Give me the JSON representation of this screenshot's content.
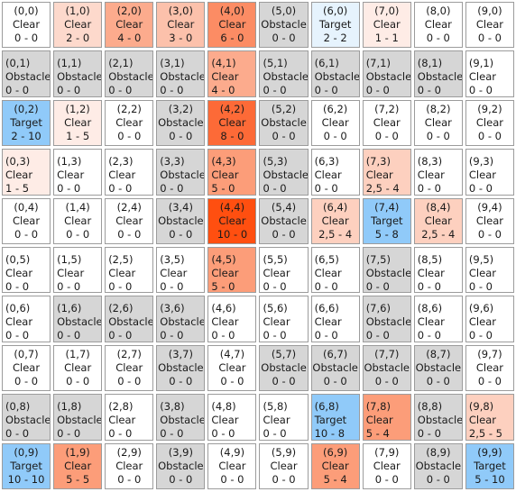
{
  "grid": {
    "columns": 10,
    "rows": 10,
    "cells": [
      [
        {
          "coord": "(0,0)",
          "type": "Clear",
          "value": "0 - 0",
          "color": "#ffffff",
          "align": "center"
        },
        {
          "coord": "(1,0)",
          "type": "Clear",
          "value": "2 - 0",
          "color": "#fdd9cc",
          "align": "center"
        },
        {
          "coord": "(2,0)",
          "type": "Clear",
          "value": "4 - 0",
          "color": "#fcab8d",
          "align": "center"
        },
        {
          "coord": "(3,0)",
          "type": "Clear",
          "value": "3 - 0",
          "color": "#fcc1ab",
          "align": "center"
        },
        {
          "coord": "(4,0)",
          "type": "Clear",
          "value": "6 - 0",
          "color": "#fc8c64",
          "align": "center"
        },
        {
          "coord": "(5,0)",
          "type": "Obstacle",
          "value": "0 - 0",
          "color": "#d6d6d6",
          "align": "center"
        },
        {
          "coord": "(6,0)",
          "type": "Target",
          "value": "2 - 2",
          "color": "#e6f3fd",
          "align": "center"
        },
        {
          "coord": "(7,0)",
          "type": "Clear",
          "value": "1 - 1",
          "color": "#feece6",
          "align": "center"
        },
        {
          "coord": "(8,0)",
          "type": "Clear",
          "value": "0 - 0",
          "color": "#ffffff",
          "align": "center"
        },
        {
          "coord": "(9,0)",
          "type": "Clear",
          "value": "0 - 0",
          "color": "#ffffff",
          "align": "center"
        }
      ],
      [
        {
          "coord": "(0,1)",
          "type": "Obstacle",
          "value": "0 - 0",
          "color": "#d6d6d6",
          "align": "left"
        },
        {
          "coord": "(1,1)",
          "type": "Obstacle",
          "value": "0 - 0",
          "color": "#d6d6d6",
          "align": "left"
        },
        {
          "coord": "(2,1)",
          "type": "Obstacle",
          "value": "0 - 0",
          "color": "#d6d6d6",
          "align": "left"
        },
        {
          "coord": "(3,1)",
          "type": "Obstacle",
          "value": "0 - 0",
          "color": "#d6d6d6",
          "align": "left"
        },
        {
          "coord": "(4,1)",
          "type": "Clear",
          "value": "4 - 0",
          "color": "#fcab8d",
          "align": "left"
        },
        {
          "coord": "(5,1)",
          "type": "Obstacle",
          "value": "0 - 0",
          "color": "#d6d6d6",
          "align": "left"
        },
        {
          "coord": "(6,1)",
          "type": "Obstacle",
          "value": "0 - 0",
          "color": "#d6d6d6",
          "align": "left"
        },
        {
          "coord": "(7,1)",
          "type": "Obstacle",
          "value": "0 - 0",
          "color": "#d6d6d6",
          "align": "left"
        },
        {
          "coord": "(8,1)",
          "type": "Obstacle",
          "value": "0 - 0",
          "color": "#d6d6d6",
          "align": "left"
        },
        {
          "coord": "(9,1)",
          "type": "Clear",
          "value": "0 - 0",
          "color": "#ffffff",
          "align": "left"
        }
      ],
      [
        {
          "coord": "(0,2)",
          "type": "Target",
          "value": "2 - 10",
          "color": "#90caf9",
          "align": "center"
        },
        {
          "coord": "(1,2)",
          "type": "Clear",
          "value": "1 - 5",
          "color": "#feece6",
          "align": "center"
        },
        {
          "coord": "(2,2)",
          "type": "Clear",
          "value": "0 - 0",
          "color": "#ffffff",
          "align": "center"
        },
        {
          "coord": "(3,2)",
          "type": "Obstacle",
          "value": "0 - 0",
          "color": "#d6d6d6",
          "align": "center"
        },
        {
          "coord": "(4,2)",
          "type": "Clear",
          "value": "8 - 0",
          "color": "#fd6a37",
          "align": "center"
        },
        {
          "coord": "(5,2)",
          "type": "Obstacle",
          "value": "0 - 0",
          "color": "#d6d6d6",
          "align": "center"
        },
        {
          "coord": "(6,2)",
          "type": "Clear",
          "value": "0 - 0",
          "color": "#ffffff",
          "align": "center"
        },
        {
          "coord": "(7,2)",
          "type": "Clear",
          "value": "0 - 0",
          "color": "#ffffff",
          "align": "center"
        },
        {
          "coord": "(8,2)",
          "type": "Clear",
          "value": "0 - 0",
          "color": "#ffffff",
          "align": "center"
        },
        {
          "coord": "(9,2)",
          "type": "Clear",
          "value": "0 - 0",
          "color": "#ffffff",
          "align": "center"
        }
      ],
      [
        {
          "coord": "(0,3)",
          "type": "Clear",
          "value": "1 - 5",
          "color": "#feece6",
          "align": "left"
        },
        {
          "coord": "(1,3)",
          "type": "Clear",
          "value": "0 - 0",
          "color": "#ffffff",
          "align": "left"
        },
        {
          "coord": "(2,3)",
          "type": "Clear",
          "value": "0 - 0",
          "color": "#ffffff",
          "align": "left"
        },
        {
          "coord": "(3,3)",
          "type": "Obstacle",
          "value": "0 - 0",
          "color": "#d6d6d6",
          "align": "left"
        },
        {
          "coord": "(4,3)",
          "type": "Clear",
          "value": "5 - 0",
          "color": "#fc9d79",
          "align": "left"
        },
        {
          "coord": "(5,3)",
          "type": "Obstacle",
          "value": "0 - 0",
          "color": "#d6d6d6",
          "align": "left"
        },
        {
          "coord": "(6,3)",
          "type": "Clear",
          "value": "0 - 0",
          "color": "#ffffff",
          "align": "left"
        },
        {
          "coord": "(7,3)",
          "type": "Clear",
          "value": "2,5 - 4",
          "color": "#fdd0bf",
          "align": "left"
        },
        {
          "coord": "(8,3)",
          "type": "Clear",
          "value": "0 - 0",
          "color": "#ffffff",
          "align": "left"
        },
        {
          "coord": "(9,3)",
          "type": "Clear",
          "value": "0 - 0",
          "color": "#ffffff",
          "align": "left"
        }
      ],
      [
        {
          "coord": "(0,4)",
          "type": "Clear",
          "value": "0 - 0",
          "color": "#ffffff",
          "align": "center"
        },
        {
          "coord": "(1,4)",
          "type": "Clear",
          "value": "0 - 0",
          "color": "#ffffff",
          "align": "center"
        },
        {
          "coord": "(2,4)",
          "type": "Clear",
          "value": "0 - 0",
          "color": "#ffffff",
          "align": "center"
        },
        {
          "coord": "(3,4)",
          "type": "Obstacle",
          "value": "0 - 0",
          "color": "#d6d6d6",
          "align": "center"
        },
        {
          "coord": "(4,4)",
          "type": "Clear",
          "value": "10 - 0",
          "color": "#ff4f10",
          "align": "center"
        },
        {
          "coord": "(5,4)",
          "type": "Obstacle",
          "value": "0 - 0",
          "color": "#d6d6d6",
          "align": "center"
        },
        {
          "coord": "(6,4)",
          "type": "Clear",
          "value": "2,5 - 4",
          "color": "#fdd0bf",
          "align": "center"
        },
        {
          "coord": "(7,4)",
          "type": "Target",
          "value": "5 - 8",
          "color": "#90caf9",
          "align": "center"
        },
        {
          "coord": "(8,4)",
          "type": "Clear",
          "value": "2,5 - 4",
          "color": "#fdd0bf",
          "align": "center"
        },
        {
          "coord": "(9,4)",
          "type": "Clear",
          "value": "0 - 0",
          "color": "#ffffff",
          "align": "center"
        }
      ],
      [
        {
          "coord": "(0,5)",
          "type": "Clear",
          "value": "0 - 0",
          "color": "#ffffff",
          "align": "left"
        },
        {
          "coord": "(1,5)",
          "type": "Clear",
          "value": "0 - 0",
          "color": "#ffffff",
          "align": "left"
        },
        {
          "coord": "(2,5)",
          "type": "Clear",
          "value": "0 - 0",
          "color": "#ffffff",
          "align": "left"
        },
        {
          "coord": "(3,5)",
          "type": "Clear",
          "value": "0 - 0",
          "color": "#ffffff",
          "align": "left"
        },
        {
          "coord": "(4,5)",
          "type": "Clear",
          "value": "5 - 0",
          "color": "#fc9d79",
          "align": "left"
        },
        {
          "coord": "(5,5)",
          "type": "Clear",
          "value": "0 - 0",
          "color": "#ffffff",
          "align": "left"
        },
        {
          "coord": "(6,5)",
          "type": "Clear",
          "value": "0 - 0",
          "color": "#ffffff",
          "align": "left"
        },
        {
          "coord": "(7,5)",
          "type": "Obstacle",
          "value": "0 - 0",
          "color": "#d6d6d6",
          "align": "left"
        },
        {
          "coord": "(8,5)",
          "type": "Clear",
          "value": "0 - 0",
          "color": "#ffffff",
          "align": "left"
        },
        {
          "coord": "(9,5)",
          "type": "Clear",
          "value": "0 - 0",
          "color": "#ffffff",
          "align": "left"
        }
      ],
      [
        {
          "coord": "(0,6)",
          "type": "Clear",
          "value": "0 - 0",
          "color": "#ffffff",
          "align": "left"
        },
        {
          "coord": "(1,6)",
          "type": "Obstacle",
          "value": "0 - 0",
          "color": "#d6d6d6",
          "align": "left"
        },
        {
          "coord": "(2,6)",
          "type": "Obstacle",
          "value": "0 - 0",
          "color": "#d6d6d6",
          "align": "left"
        },
        {
          "coord": "(3,6)",
          "type": "Obstacle",
          "value": "0 - 0",
          "color": "#d6d6d6",
          "align": "left"
        },
        {
          "coord": "(4,6)",
          "type": "Clear",
          "value": "0 - 0",
          "color": "#ffffff",
          "align": "left"
        },
        {
          "coord": "(5,6)",
          "type": "Clear",
          "value": "0 - 0",
          "color": "#ffffff",
          "align": "left"
        },
        {
          "coord": "(6,6)",
          "type": "Clear",
          "value": "0 - 0",
          "color": "#ffffff",
          "align": "left"
        },
        {
          "coord": "(7,6)",
          "type": "Obstacle",
          "value": "0 - 0",
          "color": "#d6d6d6",
          "align": "left"
        },
        {
          "coord": "(8,6)",
          "type": "Clear",
          "value": "0 - 0",
          "color": "#ffffff",
          "align": "left"
        },
        {
          "coord": "(9,6)",
          "type": "Clear",
          "value": "0 - 0",
          "color": "#ffffff",
          "align": "left"
        }
      ],
      [
        {
          "coord": "(0,7)",
          "type": "Clear",
          "value": "0 - 0",
          "color": "#ffffff",
          "align": "center"
        },
        {
          "coord": "(1,7)",
          "type": "Clear",
          "value": "0 - 0",
          "color": "#ffffff",
          "align": "center"
        },
        {
          "coord": "(2,7)",
          "type": "Clear",
          "value": "0 - 0",
          "color": "#ffffff",
          "align": "center"
        },
        {
          "coord": "(3,7)",
          "type": "Obstacle",
          "value": "0 - 0",
          "color": "#d6d6d6",
          "align": "center"
        },
        {
          "coord": "(4,7)",
          "type": "Clear",
          "value": "0 - 0",
          "color": "#ffffff",
          "align": "center"
        },
        {
          "coord": "(5,7)",
          "type": "Obstacle",
          "value": "0 - 0",
          "color": "#d6d6d6",
          "align": "center"
        },
        {
          "coord": "(6,7)",
          "type": "Obstacle",
          "value": "0 - 0",
          "color": "#d6d6d6",
          "align": "center"
        },
        {
          "coord": "(7,7)",
          "type": "Obstacle",
          "value": "0 - 0",
          "color": "#d6d6d6",
          "align": "center"
        },
        {
          "coord": "(8,7)",
          "type": "Obstacle",
          "value": "0 - 0",
          "color": "#d6d6d6",
          "align": "center"
        },
        {
          "coord": "(9,7)",
          "type": "Clear",
          "value": "0 - 0",
          "color": "#ffffff",
          "align": "center"
        }
      ],
      [
        {
          "coord": "(0,8)",
          "type": "Obstacle",
          "value": "0 - 0",
          "color": "#d6d6d6",
          "align": "left"
        },
        {
          "coord": "(1,8)",
          "type": "Obstacle",
          "value": "0 - 0",
          "color": "#d6d6d6",
          "align": "left"
        },
        {
          "coord": "(2,8)",
          "type": "Clear",
          "value": "0 - 0",
          "color": "#ffffff",
          "align": "left"
        },
        {
          "coord": "(3,8)",
          "type": "Obstacle",
          "value": "0 - 0",
          "color": "#d6d6d6",
          "align": "left"
        },
        {
          "coord": "(4,8)",
          "type": "Clear",
          "value": "0 - 0",
          "color": "#ffffff",
          "align": "left"
        },
        {
          "coord": "(5,8)",
          "type": "Clear",
          "value": "0 - 0",
          "color": "#ffffff",
          "align": "left"
        },
        {
          "coord": "(6,8)",
          "type": "Target",
          "value": "10 - 8",
          "color": "#90caf9",
          "align": "left"
        },
        {
          "coord": "(7,8)",
          "type": "Clear",
          "value": "5 - 4",
          "color": "#fc9d79",
          "align": "left"
        },
        {
          "coord": "(8,8)",
          "type": "Obstacle",
          "value": "0 - 0",
          "color": "#d6d6d6",
          "align": "left"
        },
        {
          "coord": "(9,8)",
          "type": "Clear",
          "value": "2,5 - 5",
          "color": "#fdd0bf",
          "align": "left"
        }
      ],
      [
        {
          "coord": "(0,9)",
          "type": "Target",
          "value": "10 - 10",
          "color": "#90caf9",
          "align": "center"
        },
        {
          "coord": "(1,9)",
          "type": "Clear",
          "value": "5 - 5",
          "color": "#fc9d79",
          "align": "center"
        },
        {
          "coord": "(2,9)",
          "type": "Clear",
          "value": "0 - 0",
          "color": "#ffffff",
          "align": "center"
        },
        {
          "coord": "(3,9)",
          "type": "Obstacle",
          "value": "0 - 0",
          "color": "#d6d6d6",
          "align": "center"
        },
        {
          "coord": "(4,9)",
          "type": "Clear",
          "value": "0 - 0",
          "color": "#ffffff",
          "align": "center"
        },
        {
          "coord": "(5,9)",
          "type": "Clear",
          "value": "0 - 0",
          "color": "#ffffff",
          "align": "center"
        },
        {
          "coord": "(6,9)",
          "type": "Clear",
          "value": "5 - 4",
          "color": "#fc9d79",
          "align": "center"
        },
        {
          "coord": "(7,9)",
          "type": "Clear",
          "value": "0 - 0",
          "color": "#ffffff",
          "align": "center"
        },
        {
          "coord": "(8,9)",
          "type": "Obstacle",
          "value": "0 - 0",
          "color": "#d6d6d6",
          "align": "center"
        },
        {
          "coord": "(9,9)",
          "type": "Target",
          "value": "5 - 10",
          "color": "#90caf9",
          "align": "center"
        }
      ]
    ]
  }
}
